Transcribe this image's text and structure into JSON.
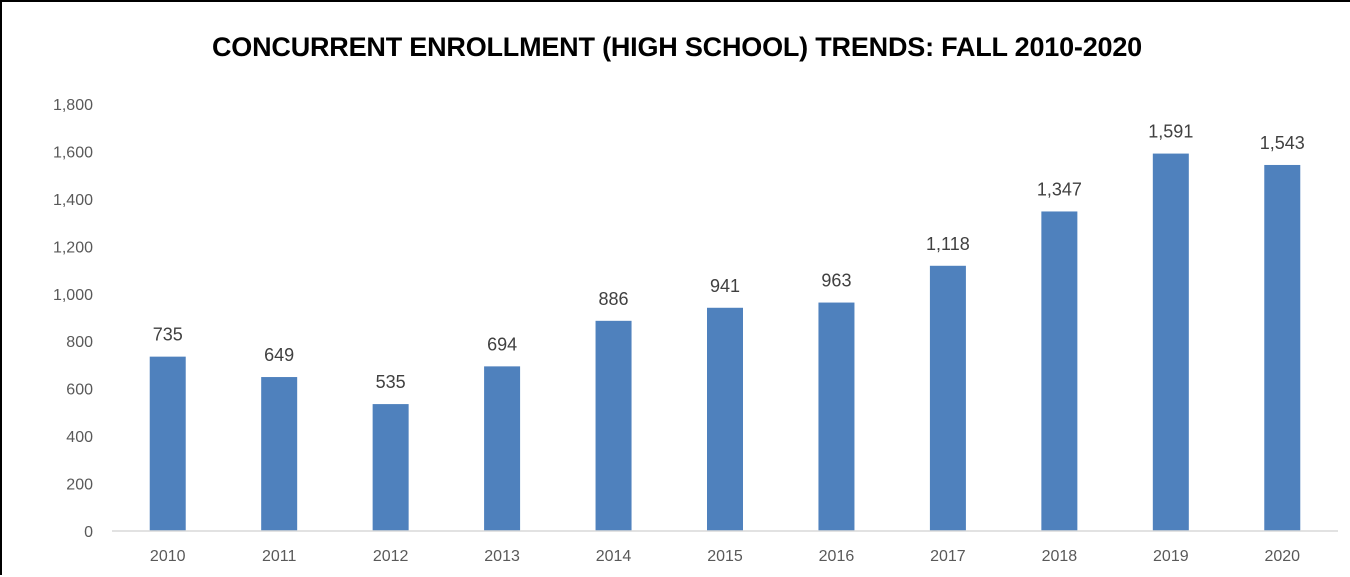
{
  "chart_data": {
    "type": "bar",
    "title": "CONCURRENT ENROLLMENT (HIGH SCHOOL) TRENDS: FALL 2010-2020",
    "xlabel": "",
    "ylabel": "",
    "categories": [
      "2010",
      "2011",
      "2012",
      "2013",
      "2014",
      "2015",
      "2016",
      "2017",
      "2018",
      "2019",
      "2020"
    ],
    "values": [
      735,
      649,
      535,
      694,
      886,
      941,
      963,
      1118,
      1347,
      1591,
      1543
    ],
    "data_labels": [
      "735",
      "649",
      "535",
      "694",
      "886",
      "941",
      "963",
      "1,118",
      "1,347",
      "1,591",
      "1,543"
    ],
    "ylim": [
      0,
      1800
    ],
    "yticks": [
      0,
      200,
      400,
      600,
      800,
      1000,
      1200,
      1400,
      1600,
      1800
    ],
    "ytick_labels": [
      "0",
      "200",
      "400",
      "600",
      "800",
      "1,000",
      "1,200",
      "1,400",
      "1,600",
      "1,800"
    ],
    "grid": false,
    "legend": "none",
    "bar_color": "#4f81bd",
    "axis_color": "#d9d9d9"
  }
}
